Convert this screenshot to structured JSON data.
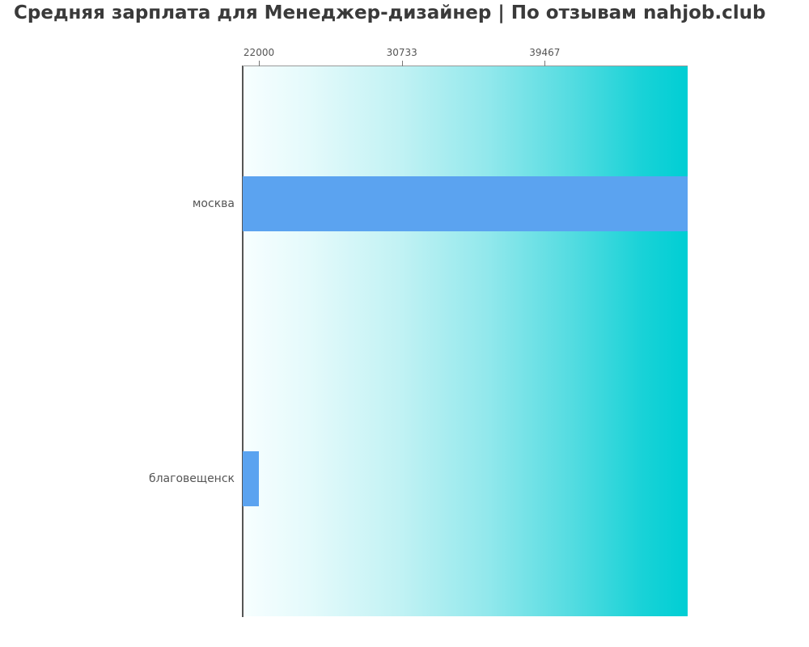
{
  "title": "Средняя зарплата для Менеджер-дизайнер | По отзывам nahjob.club",
  "chart_data": {
    "type": "bar",
    "orientation": "horizontal",
    "title": "Средняя зарплата для Менеджер-дизайнер | По отзывам nahjob.club",
    "categories": [
      "москва",
      "благовещенск"
    ],
    "values": [
      48200,
      22000
    ],
    "x_ticks": [
      22000,
      30733,
      39467
    ],
    "xlim": [
      21010,
      48200
    ],
    "xlabel": "",
    "ylabel": "",
    "grid": false,
    "legend_position": "none",
    "bar_color": "#5ba3f0",
    "background_gradient_start": "#f7feff",
    "background_gradient_end": "#00ced4",
    "title_color": "#3a3a3a",
    "tick_label_color": "#555555",
    "category_label_color": "#555555",
    "axis_spine_color": "#555555"
  }
}
